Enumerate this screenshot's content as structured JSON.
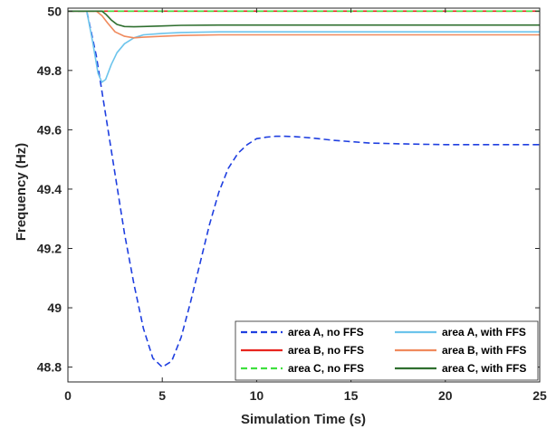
{
  "chart_data": {
    "type": "line",
    "xlabel": "Simulation Time (s)",
    "ylabel": "Frequency (Hz)",
    "xlim": [
      0,
      25
    ],
    "ylim": [
      48.75,
      50.01
    ],
    "xticks": [
      0,
      5,
      10,
      15,
      20,
      25
    ],
    "yticks": [
      48.8,
      49,
      49.2,
      49.4,
      49.6,
      49.8,
      50
    ],
    "xtick_labels": [
      "0",
      "5",
      "10",
      "15",
      "20",
      "25"
    ],
    "ytick_labels": [
      "48.8",
      "49",
      "49.2",
      "49.4",
      "49.6",
      "49.8",
      "50"
    ],
    "grid": false,
    "legend_position": "bottom-right",
    "series": [
      {
        "name": "area A, no FFS",
        "color": "#1f3fe0",
        "dash": "dashed",
        "x": [
          0,
          1,
          1.5,
          2,
          2.5,
          3,
          3.5,
          4,
          4.5,
          5,
          5.5,
          6,
          6.5,
          7,
          7.5,
          8,
          8.5,
          9,
          9.5,
          10,
          10.5,
          11,
          11.5,
          12,
          13,
          14,
          15,
          16,
          18,
          20,
          22,
          25
        ],
        "y": [
          50,
          50,
          49.85,
          49.65,
          49.45,
          49.25,
          49.08,
          48.93,
          48.83,
          48.8,
          48.82,
          48.9,
          49.02,
          49.15,
          49.28,
          49.39,
          49.47,
          49.52,
          49.55,
          49.57,
          49.575,
          49.578,
          49.578,
          49.577,
          49.572,
          49.565,
          49.56,
          49.555,
          49.552,
          49.55,
          49.55,
          49.55
        ]
      },
      {
        "name": "area B, no FFS",
        "color": "#e8251f",
        "dash": "solid",
        "x": [
          0,
          25
        ],
        "y": [
          50,
          50
        ]
      },
      {
        "name": "area C, no FFS",
        "color": "#3fe03f",
        "dash": "dashed",
        "x": [
          0,
          25
        ],
        "y": [
          50,
          50
        ]
      },
      {
        "name": "area A, with FFS",
        "color": "#6cc4ec",
        "dash": "solid",
        "x": [
          0,
          1,
          1.3,
          1.6,
          1.8,
          2.0,
          2.3,
          2.6,
          3.0,
          3.5,
          4,
          5,
          6,
          8,
          10,
          15,
          20,
          25
        ],
        "y": [
          50,
          50,
          49.9,
          49.79,
          49.76,
          49.77,
          49.82,
          49.86,
          49.89,
          49.91,
          49.92,
          49.925,
          49.928,
          49.93,
          49.93,
          49.93,
          49.93,
          49.93
        ]
      },
      {
        "name": "area B, with FFS",
        "color": "#f08a5d",
        "dash": "solid",
        "x": [
          0,
          1.5,
          1.8,
          2.1,
          2.5,
          3.0,
          3.5,
          4,
          5,
          6,
          8,
          10,
          15,
          20,
          25
        ],
        "y": [
          50,
          50,
          49.985,
          49.96,
          49.93,
          49.915,
          49.91,
          49.912,
          49.915,
          49.918,
          49.92,
          49.92,
          49.92,
          49.92,
          49.92
        ]
      },
      {
        "name": "area C, with FFS",
        "color": "#2f6f2f",
        "dash": "solid",
        "x": [
          0,
          1.8,
          2.0,
          2.3,
          2.6,
          3.0,
          3.5,
          4,
          5,
          6,
          8,
          10,
          15,
          20,
          25
        ],
        "y": [
          50,
          50,
          49.99,
          49.97,
          49.955,
          49.948,
          49.947,
          49.948,
          49.95,
          49.952,
          49.953,
          49.953,
          49.953,
          49.953,
          49.953
        ]
      }
    ]
  }
}
